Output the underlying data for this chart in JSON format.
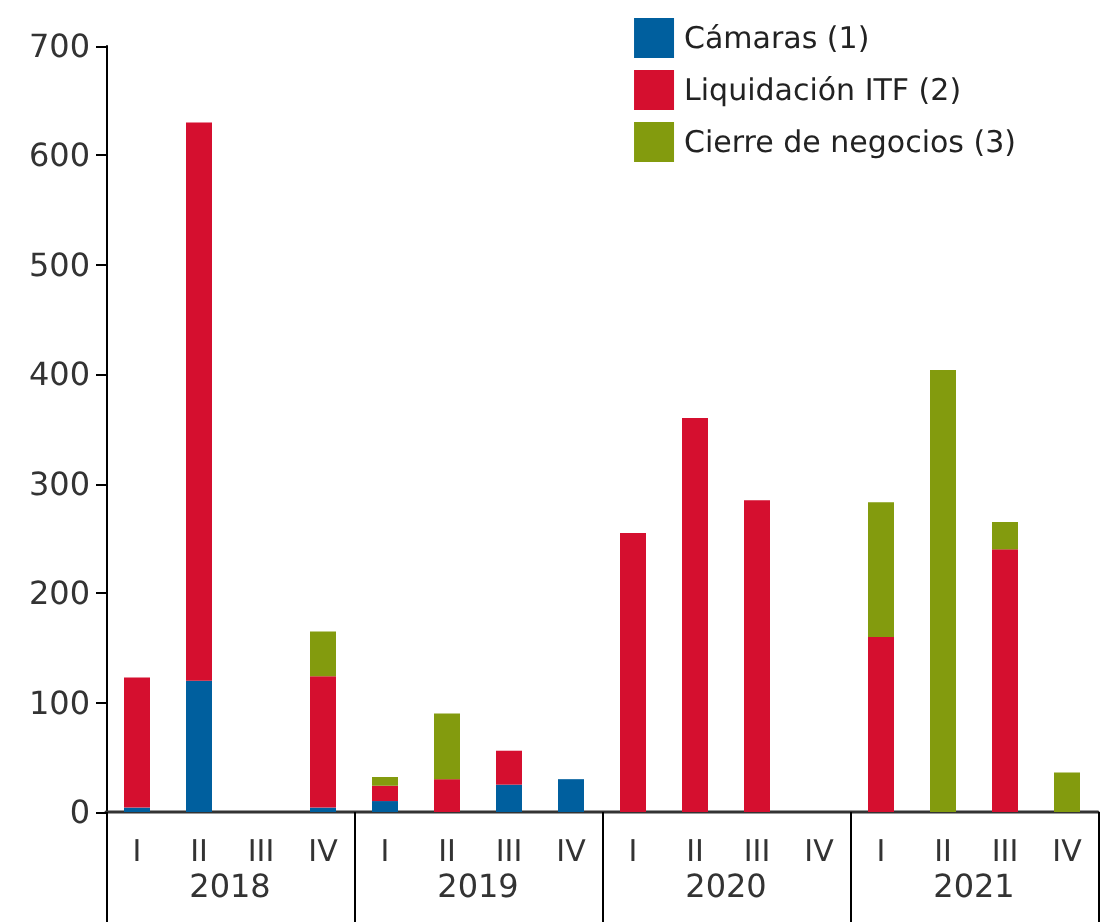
{
  "chart_data": {
    "type": "bar",
    "stacked": true,
    "categories": [
      "I",
      "II",
      "III",
      "IV",
      "I",
      "II",
      "III",
      "IV",
      "I",
      "II",
      "III",
      "IV",
      "I",
      "II",
      "III",
      "IV"
    ],
    "annotations": [
      "2018",
      "2019",
      "2020",
      "2021"
    ],
    "series": [
      {
        "name": "Cámaras (1)",
        "color": "#005f9e",
        "values": [
          4,
          120,
          0,
          4,
          10,
          0,
          25,
          30,
          0,
          0,
          0,
          0,
          0,
          0,
          0,
          0
        ]
      },
      {
        "name": "Liquidación ITF (2)",
        "color": "#d50f2f",
        "values": [
          119,
          510,
          0,
          120,
          14,
          30,
          31,
          0,
          255,
          360,
          285,
          0,
          160,
          0,
          240,
          0
        ]
      },
      {
        "name": "Cierre de negocios (3)",
        "color": "#839b0e",
        "values": [
          0,
          0,
          0,
          41,
          8,
          60,
          0,
          0,
          0,
          0,
          0,
          0,
          123,
          404,
          25,
          36
        ]
      }
    ],
    "ylim": [
      0,
      700
    ],
    "yticks": [
      0,
      100,
      200,
      300,
      400,
      500,
      600,
      700
    ],
    "grid": false,
    "legend": "top right"
  }
}
